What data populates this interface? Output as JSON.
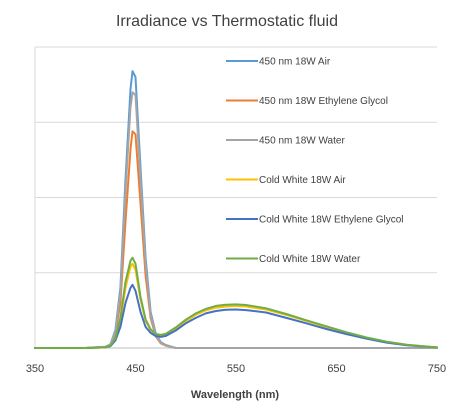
{
  "chart_data": {
    "type": "line",
    "title": "Irradiance vs Thermostatic fluid",
    "xlabel": "Wavelength (nm)",
    "ylabel": "",
    "xlim": [
      350,
      750
    ],
    "ylim": [
      0,
      1.0
    ],
    "xticks": [
      "350",
      "450",
      "550",
      "650",
      "750"
    ],
    "grid": "horizontal",
    "legend_position": "right",
    "series": [
      {
        "name": "450 nm 18W Air",
        "color": "#5b9bd5",
        "x": [
          350,
          400,
          420,
          425,
          430,
          435,
          440,
          445,
          447,
          450,
          455,
          460,
          465,
          470,
          475,
          480,
          490,
          500,
          510,
          520,
          530,
          540,
          550,
          560,
          580,
          600,
          620,
          640,
          660,
          680,
          700,
          720,
          740,
          750
        ],
        "y": [
          0,
          0,
          0.004,
          0.012,
          0.06,
          0.2,
          0.56,
          0.86,
          0.92,
          0.9,
          0.6,
          0.3,
          0.12,
          0.05,
          0.02,
          0.01,
          0,
          0,
          0,
          0,
          0,
          0,
          0,
          0,
          0,
          0,
          0,
          0,
          0,
          0,
          0,
          0,
          0,
          0
        ]
      },
      {
        "name": "450 nm 18W Ethylene Glycol",
        "color": "#ed7d31",
        "x": [
          350,
          400,
          420,
          425,
          430,
          435,
          440,
          445,
          447,
          450,
          455,
          460,
          465,
          470,
          475,
          480,
          490,
          500,
          510,
          520,
          530,
          540,
          550,
          560,
          580,
          600,
          620,
          640,
          660,
          680,
          700,
          720,
          740,
          750
        ],
        "y": [
          0,
          0,
          0.003,
          0.01,
          0.045,
          0.15,
          0.42,
          0.66,
          0.72,
          0.71,
          0.48,
          0.24,
          0.1,
          0.04,
          0.016,
          0.008,
          0,
          0,
          0,
          0,
          0,
          0,
          0,
          0,
          0,
          0,
          0,
          0,
          0,
          0,
          0,
          0,
          0,
          0
        ]
      },
      {
        "name": "450 nm 18W Water",
        "color": "#a5a5a5",
        "x": [
          350,
          400,
          420,
          425,
          430,
          435,
          440,
          445,
          447,
          450,
          455,
          460,
          465,
          470,
          475,
          480,
          490,
          500,
          510,
          520,
          530,
          540,
          550,
          560,
          580,
          600,
          620,
          640,
          660,
          680,
          700,
          720,
          740,
          750
        ],
        "y": [
          0,
          0,
          0.004,
          0.011,
          0.055,
          0.18,
          0.52,
          0.8,
          0.85,
          0.84,
          0.56,
          0.28,
          0.11,
          0.045,
          0.018,
          0.009,
          0,
          0,
          0,
          0,
          0,
          0,
          0,
          0,
          0,
          0,
          0,
          0,
          0,
          0,
          0,
          0,
          0,
          0
        ]
      },
      {
        "name": "Cold White 18W Air",
        "color": "#ffc000",
        "x": [
          350,
          400,
          420,
          425,
          430,
          435,
          440,
          445,
          447,
          450,
          455,
          460,
          465,
          470,
          475,
          480,
          490,
          500,
          510,
          520,
          530,
          540,
          550,
          560,
          580,
          600,
          620,
          640,
          660,
          680,
          700,
          720,
          740,
          750
        ],
        "y": [
          0,
          0,
          0.002,
          0.008,
          0.03,
          0.09,
          0.2,
          0.27,
          0.28,
          0.26,
          0.16,
          0.09,
          0.06,
          0.045,
          0.042,
          0.045,
          0.065,
          0.09,
          0.11,
          0.125,
          0.134,
          0.138,
          0.14,
          0.138,
          0.128,
          0.11,
          0.09,
          0.07,
          0.05,
          0.034,
          0.02,
          0.01,
          0.004,
          0.002
        ]
      },
      {
        "name": "Cold White 18W Ethylene Glycol",
        "color": "#4472c4",
        "x": [
          350,
          400,
          420,
          425,
          430,
          435,
          440,
          445,
          447,
          450,
          455,
          460,
          465,
          470,
          475,
          480,
          490,
          500,
          510,
          520,
          530,
          540,
          550,
          560,
          580,
          600,
          620,
          640,
          660,
          680,
          700,
          720,
          740,
          750
        ],
        "y": [
          0,
          0,
          0.002,
          0.006,
          0.025,
          0.07,
          0.15,
          0.2,
          0.21,
          0.19,
          0.12,
          0.07,
          0.05,
          0.04,
          0.037,
          0.04,
          0.058,
          0.082,
          0.1,
          0.115,
          0.123,
          0.127,
          0.128,
          0.126,
          0.118,
          0.1,
          0.082,
          0.063,
          0.046,
          0.031,
          0.018,
          0.009,
          0.004,
          0.002
        ]
      },
      {
        "name": "Cold White 18W Water",
        "color": "#70ad47",
        "x": [
          350,
          400,
          420,
          425,
          430,
          435,
          440,
          445,
          447,
          450,
          455,
          460,
          465,
          470,
          475,
          480,
          490,
          500,
          510,
          520,
          530,
          540,
          550,
          560,
          580,
          600,
          620,
          640,
          660,
          680,
          700,
          720,
          740,
          750
        ],
        "y": [
          0,
          0,
          0.002,
          0.008,
          0.032,
          0.1,
          0.22,
          0.29,
          0.3,
          0.28,
          0.17,
          0.095,
          0.062,
          0.047,
          0.044,
          0.047,
          0.068,
          0.094,
          0.115,
          0.13,
          0.14,
          0.144,
          0.145,
          0.143,
          0.132,
          0.113,
          0.092,
          0.072,
          0.052,
          0.035,
          0.021,
          0.011,
          0.005,
          0.002
        ]
      }
    ]
  }
}
